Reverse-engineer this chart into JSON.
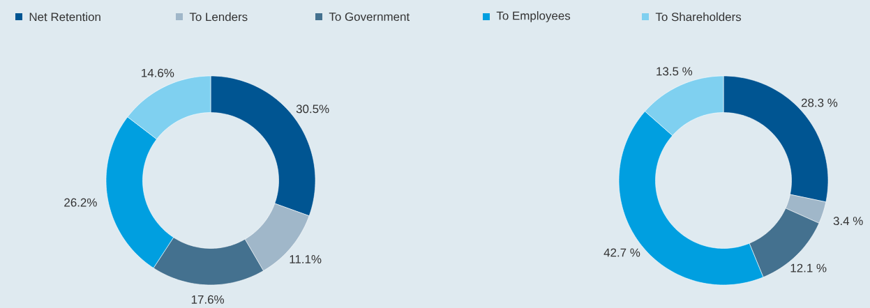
{
  "chart_data": [
    {
      "type": "donut",
      "categories": [
        "Net Retention",
        "To Lenders",
        "To Government",
        "To Employees",
        "To Shareholders"
      ],
      "values": [
        30.5,
        11.1,
        17.6,
        26.2,
        14.6
      ],
      "colors": [
        "#005592",
        "#a0b7c9",
        "#44718f",
        "#009fe0",
        "#7fd0f0"
      ],
      "value_labels": [
        "30.5%",
        "11.1%",
        "17.6%",
        "26.2%",
        "14.6%"
      ],
      "legend": "top"
    },
    {
      "type": "donut",
      "categories": [
        null,
        null,
        null,
        null,
        null
      ],
      "values": [
        28.3,
        3.4,
        12.1,
        42.7,
        13.5
      ],
      "colors": [
        "#005592",
        "#a0b7c9",
        "#44718f",
        "#009fe0",
        "#7fd0f0"
      ],
      "value_labels": [
        "28.3 %",
        "3.4 %",
        "12.1 %",
        "42.7 %",
        "13.5 %"
      ]
    }
  ]
}
